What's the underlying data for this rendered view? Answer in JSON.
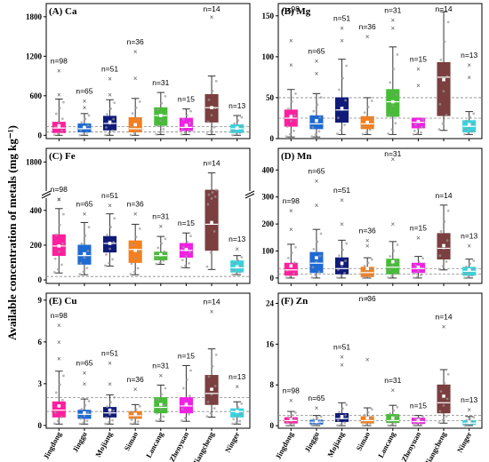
{
  "figure": {
    "ylabel": "Available concentration of metals (mg kg⁻¹)",
    "sites": [
      "Jingdong",
      "Jinggu",
      "Mojiang",
      "Simao",
      "Lancang",
      "Zhenyuan",
      "Jiangcheng",
      "Ninger"
    ],
    "n_labels": [
      "n=98",
      "n=65",
      "n=51",
      "n=36",
      "n=31",
      "n=15",
      "n=14",
      "n=13"
    ],
    "colors": [
      "#ff1f9f",
      "#1e6ad4",
      "#101a7a",
      "#f47f1e",
      "#48bb38",
      "#f21fe5",
      "#7b3f3f",
      "#35d3de"
    ],
    "axis_break_symbol": "//"
  },
  "chart_data": [
    {
      "type": "box",
      "panel": "A",
      "title": "(A) Ca",
      "categories": [
        "Jingdong",
        "Jinggu",
        "Mojiang",
        "Simao",
        "Lancang",
        "Zhenyuan",
        "Jiangcheng",
        "Ninger"
      ],
      "ylim": [
        -50,
        2000
      ],
      "yticks": [
        0,
        600,
        1200,
        1800
      ],
      "ref_lines": [
        50,
        130
      ],
      "boxes": [
        {
          "min": 0,
          "q1": 40,
          "median": 110,
          "q3": 200,
          "max": 550,
          "mean": 140,
          "outliers": [
            620,
            980
          ]
        },
        {
          "min": 0,
          "q1": 50,
          "median": 100,
          "q3": 175,
          "max": 330,
          "mean": 120,
          "outliers": [
            420,
            520
          ]
        },
        {
          "min": 0,
          "q1": 80,
          "median": 180,
          "q3": 290,
          "max": 540,
          "mean": 200,
          "outliers": [
            620,
            860
          ]
        },
        {
          "min": 0,
          "q1": 50,
          "median": 100,
          "q3": 270,
          "max": 560,
          "mean": 160,
          "outliers": [
            870,
            1270
          ]
        },
        {
          "min": 10,
          "q1": 150,
          "median": 300,
          "q3": 420,
          "max": 650,
          "mean": 300,
          "outliers": []
        },
        {
          "min": 10,
          "q1": 70,
          "median": 120,
          "q3": 260,
          "max": 400,
          "mean": 150,
          "outliers": []
        },
        {
          "min": 10,
          "q1": 200,
          "median": 420,
          "q3": 620,
          "max": 900,
          "mean": 420,
          "outliers": [
            1800
          ]
        },
        {
          "min": 0,
          "q1": 40,
          "median": 100,
          "q3": 160,
          "max": 300,
          "mean": 110,
          "outliers": []
        }
      ]
    },
    {
      "type": "box",
      "panel": "B",
      "title": "(B) Mg",
      "categories": [
        "Jingdong",
        "Jinggu",
        "Mojiang",
        "Simao",
        "Lancang",
        "Zhenyuan",
        "Jiangcheng",
        "Ninger"
      ],
      "ylim": [
        0,
        165
      ],
      "yticks": [
        0,
        50,
        100,
        150
      ],
      "ref_lines": [
        25,
        50
      ],
      "boxes": [
        {
          "min": 2,
          "q1": 15,
          "median": 25,
          "q3": 35,
          "max": 60,
          "mean": 27,
          "outliers": [
            90,
            120,
            155
          ]
        },
        {
          "min": 2,
          "q1": 12,
          "median": 18,
          "q3": 28,
          "max": 55,
          "mean": 22,
          "outliers": [
            80,
            95
          ]
        },
        {
          "min": 5,
          "q1": 20,
          "median": 35,
          "q3": 50,
          "max": 97,
          "mean": 37,
          "outliers": [
            120,
            135
          ]
        },
        {
          "min": 5,
          "q1": 12,
          "median": 18,
          "q3": 27,
          "max": 50,
          "mean": 20,
          "outliers": [
            125
          ]
        },
        {
          "min": 5,
          "q1": 27,
          "median": 45,
          "q3": 60,
          "max": 112,
          "mean": 45,
          "outliers": [
            135,
            145
          ]
        },
        {
          "min": 5,
          "q1": 13,
          "median": 20,
          "q3": 25,
          "max": 25,
          "mean": 21,
          "outliers": [
            65,
            85
          ]
        },
        {
          "min": 10,
          "q1": 28,
          "median": 75,
          "q3": 93,
          "max": 155,
          "mean": 72,
          "outliers": []
        },
        {
          "min": 5,
          "q1": 8,
          "median": 15,
          "q3": 22,
          "max": 33,
          "mean": 17,
          "outliers": [
            75,
            90
          ]
        }
      ]
    },
    {
      "type": "box",
      "panel": "C",
      "title": "(C) Fe",
      "categories": [
        "Jingdong",
        "Jinggu",
        "Mojiang",
        "Simao",
        "Lancang",
        "Zhenyuan",
        "Jiangcheng",
        "Ninger"
      ],
      "broken_axis": true,
      "lower_range": [
        -20,
        460
      ],
      "upper_range": [
        1700,
        1850
      ],
      "yticks_lower": [
        0,
        200,
        400
      ],
      "yticks_upper": [
        1800
      ],
      "ref_lines": [
        20
      ],
      "boxes": [
        {
          "min": 40,
          "q1": 140,
          "median": 195,
          "q3": 260,
          "max": 410,
          "mean": 195,
          "outliers": [
            500,
            540
          ]
        },
        {
          "min": 30,
          "q1": 90,
          "median": 140,
          "q3": 200,
          "max": 330,
          "mean": 150,
          "outliers": [
            380
          ]
        },
        {
          "min": 80,
          "q1": 160,
          "median": 210,
          "q3": 250,
          "max": 380,
          "mean": 210,
          "outliers": [
            430
          ]
        },
        {
          "min": 30,
          "q1": 100,
          "median": 175,
          "q3": 225,
          "max": 320,
          "mean": 170,
          "outliers": [
            380
          ]
        },
        {
          "min": 90,
          "q1": 115,
          "median": 140,
          "q3": 160,
          "max": 250,
          "mean": 145,
          "outliers": [
            310
          ]
        },
        {
          "min": 70,
          "q1": 130,
          "median": 170,
          "q3": 210,
          "max": 270,
          "mean": 175,
          "outliers": []
        },
        {
          "min": 60,
          "q1": 170,
          "median": 320,
          "q3": 1600,
          "max": 1760,
          "mean": 330,
          "outliers": []
        },
        {
          "min": 30,
          "q1": 45,
          "median": 70,
          "q3": 110,
          "max": 140,
          "mean": 75,
          "outliers": [
            180
          ]
        }
      ]
    },
    {
      "type": "box",
      "panel": "D",
      "title": "(D) Mn",
      "categories": [
        "Jingdong",
        "Jinggu",
        "Mojiang",
        "Simao",
        "Lancang",
        "Zhenyuan",
        "Jiangcheng",
        "Ninger"
      ],
      "ylim": [
        -20,
        480
      ],
      "yticks": [
        0,
        100,
        200,
        300,
        400
      ],
      "ref_lines": [
        15,
        35
      ],
      "boxes": [
        {
          "min": 0,
          "q1": 10,
          "median": 30,
          "q3": 55,
          "max": 125,
          "mean": 45,
          "outliers": [
            180,
            250
          ]
        },
        {
          "min": 0,
          "q1": 20,
          "median": 55,
          "q3": 95,
          "max": 180,
          "mean": 75,
          "outliers": [
            270,
            360
          ]
        },
        {
          "min": 0,
          "q1": 15,
          "median": 35,
          "q3": 75,
          "max": 140,
          "mean": 55,
          "outliers": [
            200,
            290
          ]
        },
        {
          "min": 0,
          "q1": 5,
          "median": 20,
          "q3": 40,
          "max": 75,
          "mean": 35,
          "outliers": [
            120,
            140
          ]
        },
        {
          "min": 0,
          "q1": 15,
          "median": 40,
          "q3": 70,
          "max": 135,
          "mean": 60,
          "outliers": [
            200,
            440
          ]
        },
        {
          "min": 0,
          "q1": 20,
          "median": 35,
          "q3": 55,
          "max": 80,
          "mean": 40,
          "outliers": [
            150
          ]
        },
        {
          "min": 30,
          "q1": 70,
          "median": 110,
          "q3": 165,
          "max": 270,
          "mean": 120,
          "outliers": []
        },
        {
          "min": 0,
          "q1": 10,
          "median": 25,
          "q3": 40,
          "max": 70,
          "mean": 30,
          "outliers": [
            120
          ]
        }
      ]
    },
    {
      "type": "box",
      "panel": "E",
      "title": "(E) Cu",
      "categories": [
        "Jingdong",
        "Jinggu",
        "Mojiang",
        "Simao",
        "Lancang",
        "Zhenyuan",
        "Jiangcheng",
        "Ninger"
      ],
      "ylim": [
        -0.2,
        9.5
      ],
      "yticks": [
        0,
        3,
        6,
        9
      ],
      "ref_lines": [
        1.0,
        2.0
      ],
      "boxes": [
        {
          "min": 0.1,
          "q1": 0.6,
          "median": 1.1,
          "q3": 1.7,
          "max": 3.9,
          "mean": 1.4,
          "outliers": [
            4.8,
            6.0,
            7.2
          ]
        },
        {
          "min": 0.1,
          "q1": 0.5,
          "median": 0.8,
          "q3": 1.1,
          "max": 1.9,
          "mean": 0.9,
          "outliers": [
            3.0,
            3.8
          ]
        },
        {
          "min": 0.1,
          "q1": 0.6,
          "median": 0.9,
          "q3": 1.3,
          "max": 2.2,
          "mean": 1.1,
          "outliers": [
            3.0,
            4.5
          ]
        },
        {
          "min": 0.1,
          "q1": 0.5,
          "median": 0.7,
          "q3": 1.0,
          "max": 1.5,
          "mean": 0.8,
          "outliers": [
            2.6
          ]
        },
        {
          "min": 0.3,
          "q1": 0.9,
          "median": 1.3,
          "q3": 2.0,
          "max": 2.9,
          "mean": 1.5,
          "outliers": [
            3.6
          ]
        },
        {
          "min": 0.3,
          "q1": 0.9,
          "median": 1.4,
          "q3": 2.0,
          "max": 4.3,
          "mean": 1.5,
          "outliers": []
        },
        {
          "min": 0.6,
          "q1": 1.5,
          "median": 2.3,
          "q3": 3.6,
          "max": 5.5,
          "mean": 2.6,
          "outliers": [
            8.2
          ]
        },
        {
          "min": 0.1,
          "q1": 0.6,
          "median": 1.0,
          "q3": 1.2,
          "max": 1.7,
          "mean": 1.0,
          "outliers": [
            2.8
          ]
        }
      ]
    },
    {
      "type": "box",
      "panel": "F",
      "title": "(F) Zn",
      "categories": [
        "Jingdong",
        "Jinggu",
        "Mojiang",
        "Simao",
        "Lancang",
        "Zhenyuan",
        "Jiangcheng",
        "Ninger"
      ],
      "ylim": [
        -0.5,
        26
      ],
      "yticks": [
        0,
        8,
        16,
        24
      ],
      "ref_lines": [
        1.0,
        2.0
      ],
      "boxes": [
        {
          "min": 0,
          "q1": 0.5,
          "median": 1.0,
          "q3": 1.6,
          "max": 2.8,
          "mean": 1.2,
          "outliers": [
            5.0
          ]
        },
        {
          "min": 0,
          "q1": 0.3,
          "median": 0.7,
          "q3": 1.1,
          "max": 2.0,
          "mean": 0.8,
          "outliers": [
            3.5
          ]
        },
        {
          "min": 0,
          "q1": 0.8,
          "median": 1.4,
          "q3": 2.4,
          "max": 4.5,
          "mean": 1.8,
          "outliers": [
            12,
            13.5
          ]
        },
        {
          "min": 0,
          "q1": 0.5,
          "median": 1.0,
          "q3": 1.8,
          "max": 3.5,
          "mean": 1.5,
          "outliers": [
            13,
            25
          ]
        },
        {
          "min": 0,
          "q1": 0.6,
          "median": 1.0,
          "q3": 2.2,
          "max": 4.0,
          "mean": 1.5,
          "outliers": [
            7
          ]
        },
        {
          "min": 0,
          "q1": 0.4,
          "median": 0.8,
          "q3": 1.5,
          "max": 2.0,
          "mean": 1.0,
          "outliers": []
        },
        {
          "min": 0.5,
          "q1": 2.5,
          "median": 4.5,
          "q3": 8.0,
          "max": 11,
          "mean": 5.8,
          "outliers": [
            19.5
          ]
        },
        {
          "min": 0,
          "q1": 0.2,
          "median": 0.5,
          "q3": 1.0,
          "max": 1.8,
          "mean": 0.7,
          "outliers": [
            3.2
          ]
        }
      ]
    }
  ]
}
